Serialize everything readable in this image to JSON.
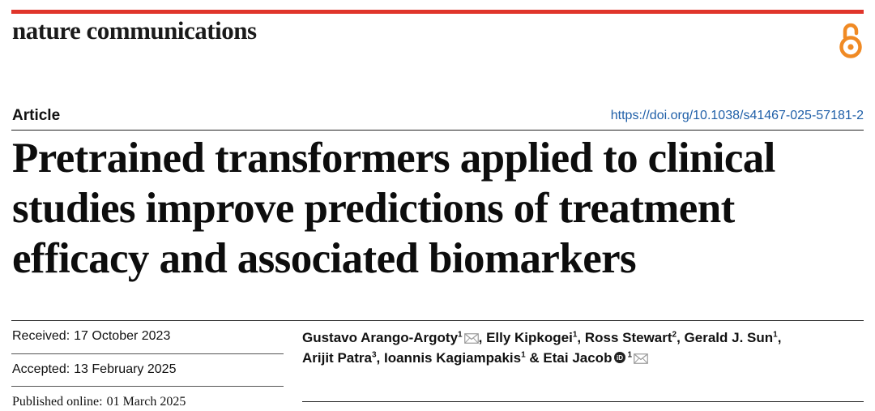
{
  "header": {
    "journal_name": "nature communications",
    "open_access_icon": "open-access-lock-icon"
  },
  "article": {
    "type": "Article",
    "doi": "https://doi.org/10.1038/s41467-025-57181-2",
    "title": "Pretrained transformers applied to clinical studies improve predictions of treatment efficacy and associated biomarkers"
  },
  "dates": {
    "received_label": "Received:",
    "received_value": "17 October 2023",
    "accepted_label": "Accepted:",
    "accepted_value": "13 February 2025",
    "published_label": "Published online:",
    "published_value": "01 March 2025"
  },
  "authors": [
    {
      "name": "Gustavo Arango-Argoty",
      "aff": "1",
      "corresponding": true,
      "orcid": false,
      "sep": ", "
    },
    {
      "name": "Elly Kipkogei",
      "aff": "1",
      "corresponding": false,
      "orcid": false,
      "sep": ", "
    },
    {
      "name": "Ross Stewart",
      "aff": "2",
      "corresponding": false,
      "orcid": false,
      "sep": ", "
    },
    {
      "name": "Gerald J. Sun",
      "aff": "1",
      "corresponding": false,
      "orcid": false,
      "sep": ", "
    },
    {
      "name": "Arijit Patra",
      "aff": "3",
      "corresponding": false,
      "orcid": false,
      "sep": ", "
    },
    {
      "name": "Ioannis Kagiampakis",
      "aff": "1",
      "corresponding": false,
      "orcid": false,
      "sep": " & "
    },
    {
      "name": "Etai Jacob",
      "aff": "1",
      "corresponding": true,
      "orcid": true,
      "sep": ""
    }
  ],
  "colors": {
    "accent_bar": "#e0352b",
    "open_access": "#f08a24",
    "link": "#1f5fa8"
  }
}
